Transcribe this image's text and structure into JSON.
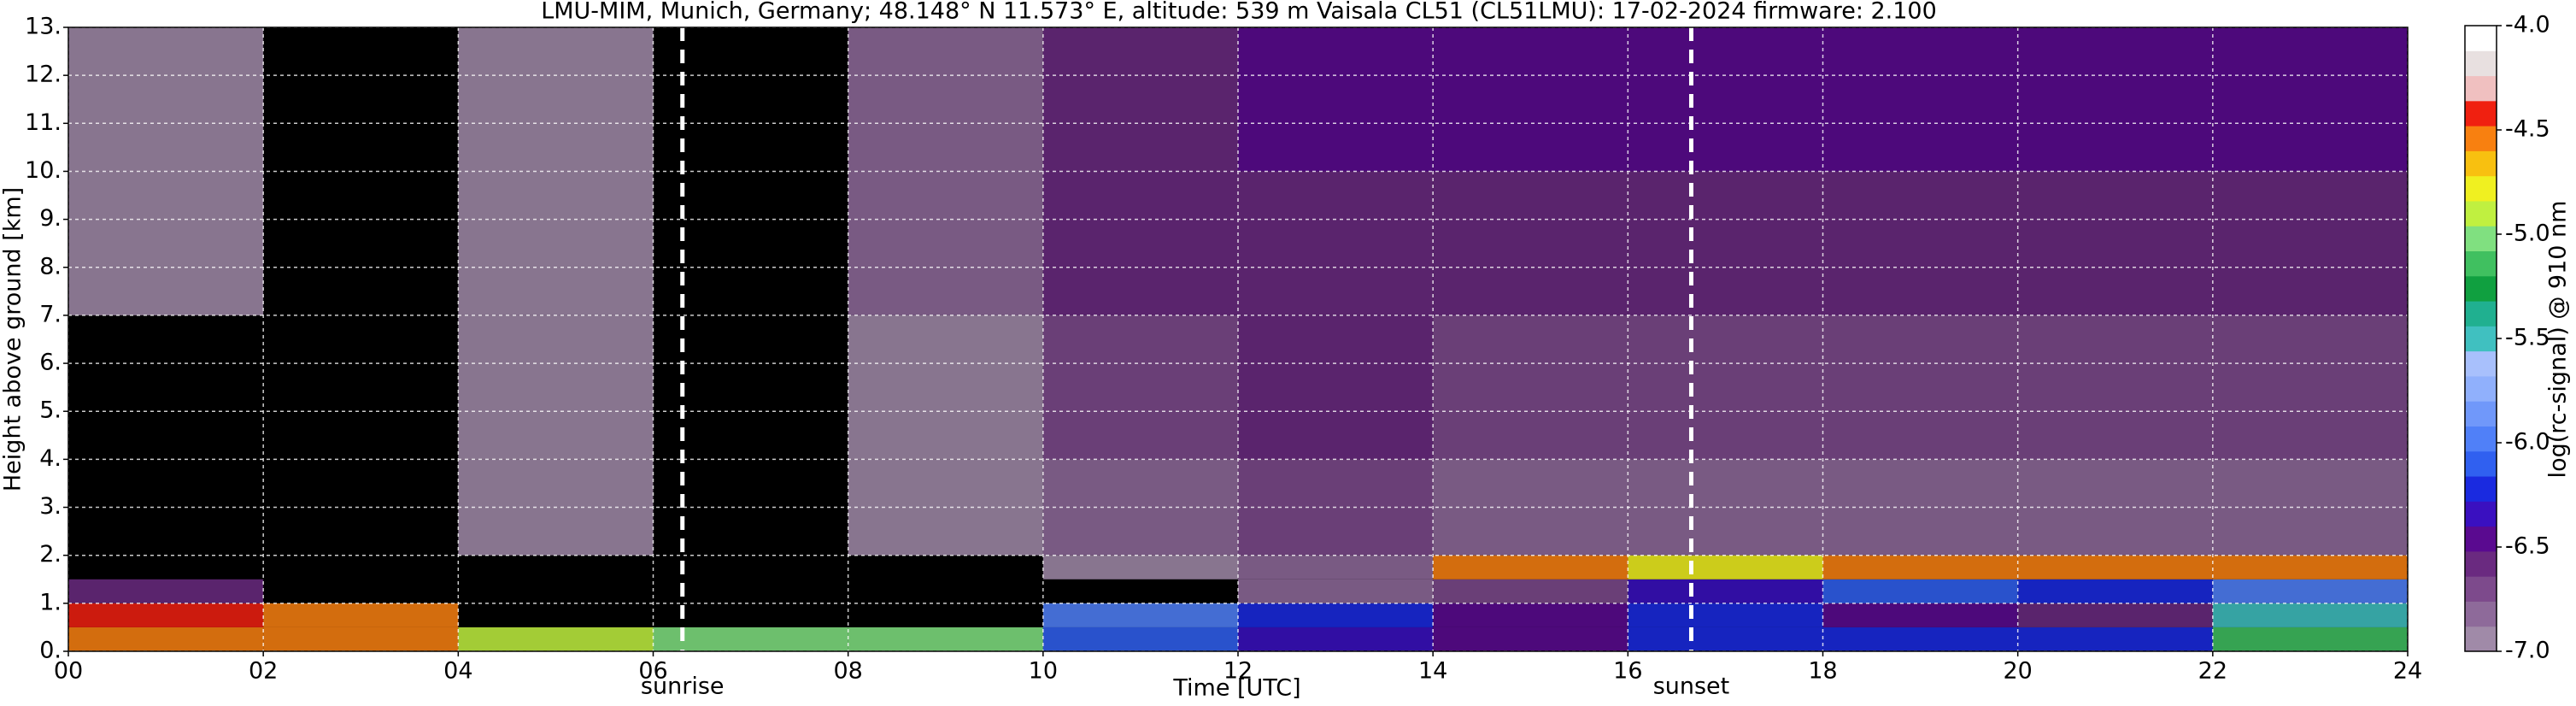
{
  "chart_data": {
    "type": "heatmap",
    "title": "LMU-MIM, Munich, Germany; 48.148° N 11.573° E, altitude: 539 m    Vaisala CL51 (CL51LMU): 17-02-2024    firmware: 2.100",
    "x_label": "Time [UTC]",
    "y_label": "Height above ground [km]",
    "colorbar_label": "log(rc-signal) @ 910 nm",
    "x": [
      0,
      2,
      4,
      6,
      8,
      10,
      12,
      14,
      16,
      18,
      20,
      22,
      24
    ],
    "y": [
      0,
      0.5,
      1,
      1.5,
      2,
      4,
      7,
      10,
      13
    ],
    "values": [
      [
        -4.5,
        -4.6,
        -4.9,
        -5.0,
        -5.0,
        -6.1,
        -6.3,
        -6.5,
        -6.2,
        -6.2,
        -6.2,
        -5.2
      ],
      [
        -4.4,
        -4.5,
        null,
        null,
        null,
        -6.0,
        -6.2,
        -6.4,
        -6.2,
        -6.5,
        -6.6,
        -5.5
      ],
      [
        -6.6,
        null,
        null,
        null,
        null,
        null,
        -6.8,
        -6.7,
        -6.3,
        -6.1,
        -6.2,
        -6.0
      ],
      [
        null,
        null,
        null,
        null,
        null,
        -6.9,
        -6.8,
        -4.6,
        -4.8,
        -4.5,
        -4.5,
        -4.6
      ],
      [
        null,
        null,
        -6.9,
        null,
        -6.9,
        -6.8,
        -6.7,
        -6.8,
        -6.8,
        -6.8,
        -6.8,
        -6.8
      ],
      [
        null,
        null,
        -6.9,
        null,
        -6.9,
        -6.7,
        -6.6,
        -6.7,
        -6.7,
        -6.7,
        -6.7,
        -6.7
      ],
      [
        -6.9,
        null,
        -6.9,
        null,
        -6.8,
        -6.6,
        -6.6,
        -6.6,
        -6.6,
        -6.6,
        -6.6,
        -6.6
      ],
      [
        -6.9,
        null,
        -6.9,
        null,
        -6.8,
        -6.6,
        -6.5,
        -6.5,
        -6.5,
        -6.5,
        -6.5,
        -6.5
      ]
    ],
    "xlim": [
      0,
      24
    ],
    "ylim": [
      0,
      13
    ],
    "clim": [
      -7,
      -4
    ],
    "xticks": [
      {
        "value": 0,
        "label": "00"
      },
      {
        "value": 2,
        "label": "02"
      },
      {
        "value": 4,
        "label": "04"
      },
      {
        "value": 6,
        "label": "06"
      },
      {
        "value": 8,
        "label": "08"
      },
      {
        "value": 10,
        "label": "10"
      },
      {
        "value": 12,
        "label": "12"
      },
      {
        "value": 14,
        "label": "14"
      },
      {
        "value": 16,
        "label": "16"
      },
      {
        "value": 18,
        "label": "18"
      },
      {
        "value": 20,
        "label": "20"
      },
      {
        "value": 22,
        "label": "22"
      },
      {
        "value": 24,
        "label": "24"
      }
    ],
    "yticks": [
      {
        "value": 0,
        "label": "0."
      },
      {
        "value": 1,
        "label": "1."
      },
      {
        "value": 2,
        "label": "2."
      },
      {
        "value": 3,
        "label": "3."
      },
      {
        "value": 4,
        "label": "4."
      },
      {
        "value": 5,
        "label": "5."
      },
      {
        "value": 6,
        "label": "6."
      },
      {
        "value": 7,
        "label": "7."
      },
      {
        "value": 8,
        "label": "8."
      },
      {
        "value": 9,
        "label": "9."
      },
      {
        "value": 10,
        "label": "10."
      },
      {
        "value": 11,
        "label": "11."
      },
      {
        "value": 12,
        "label": "12."
      },
      {
        "value": 13,
        "label": "13."
      }
    ],
    "cticks": [
      {
        "value": -4,
        "label": "-4.0"
      },
      {
        "value": -4.5,
        "label": "-4.5"
      },
      {
        "value": -5,
        "label": "-5.0"
      },
      {
        "value": -5.5,
        "label": "-5.5"
      },
      {
        "value": -6,
        "label": "-6.0"
      },
      {
        "value": -6.5,
        "label": "-6.5"
      },
      {
        "value": -7,
        "label": "-7.0"
      }
    ],
    "colors": [
      "#a08aa8",
      "#8e6a9a",
      "#7d4a8c",
      "#6a2a80",
      "#5a0a90",
      "#3a10c0",
      "#1a2ae0",
      "#3060f0",
      "#5080f8",
      "#7098fa",
      "#90b0fc",
      "#a8c0fc",
      "#40c0c0",
      "#20b090",
      "#10a040",
      "#40c060",
      "#80e080",
      "#c0f040",
      "#f0f020",
      "#f8c010",
      "#f88010",
      "#f02010",
      "#f0c0c0",
      "#e8e0e0",
      "#ffffff"
    ],
    "background": "#000000",
    "grid": true,
    "annotations": [
      {
        "x": 6.3,
        "label": "sunrise"
      },
      {
        "x": 16.65,
        "label": "sunset"
      }
    ]
  }
}
